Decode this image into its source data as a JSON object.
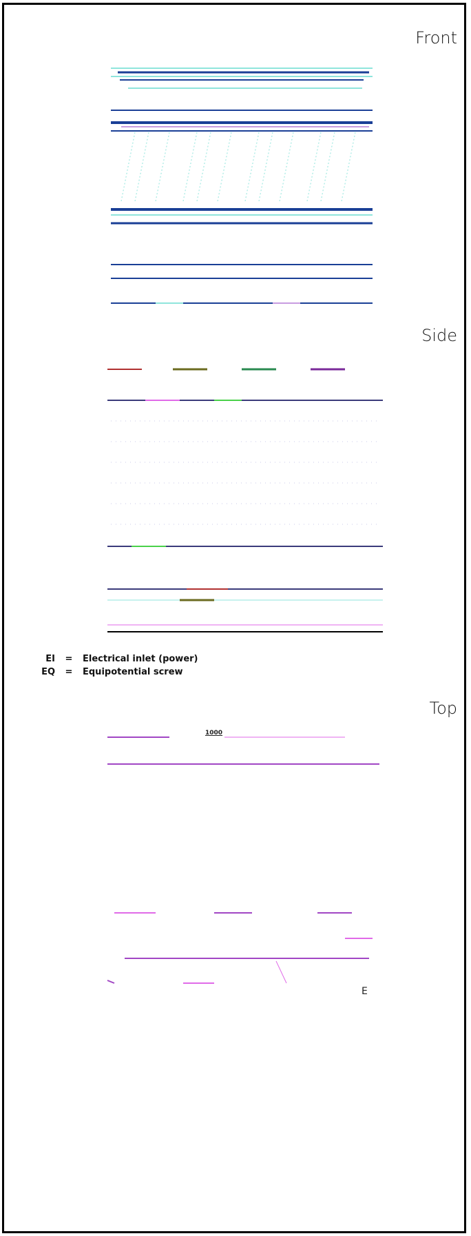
{
  "views": {
    "front": {
      "title": "Front"
    },
    "side": {
      "title": "Side"
    },
    "top": {
      "title": "Top"
    }
  },
  "legend": [
    {
      "abbr": "EI",
      "sep": "=",
      "text": "Electrical inlet (power)"
    },
    {
      "abbr": "EQ",
      "sep": "=",
      "text": "Equipotential screw"
    }
  ],
  "top_view": {
    "dimension_label": "1000",
    "corner_letter": "E"
  },
  "colors": {
    "front_primary": "#1a3f96",
    "front_secondary": "#8fe5dc",
    "front_accent": "#c79be0",
    "side_primary": "#3a3a7a",
    "top_primary": "#a146c4",
    "top_secondary": "#e06ae8"
  }
}
